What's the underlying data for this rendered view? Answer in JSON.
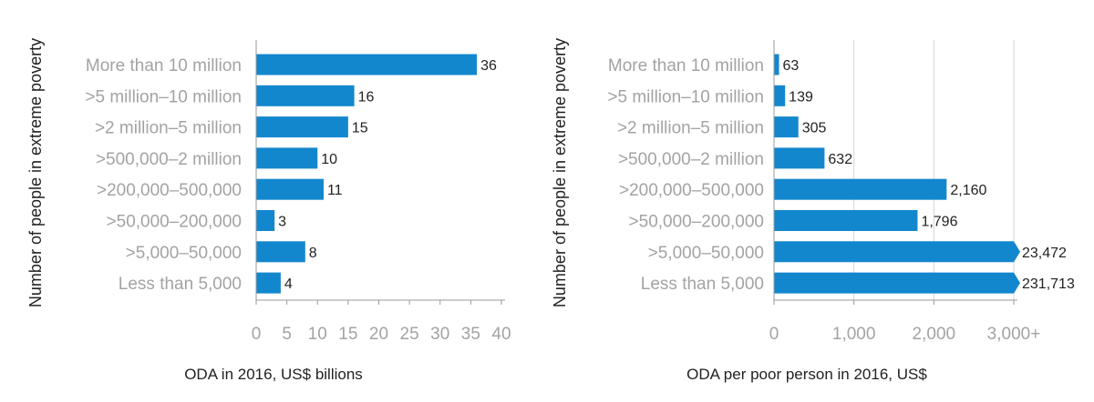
{
  "colors": {
    "bar": "#1387cd",
    "axis": "#999999",
    "grid": "#d4d4d4",
    "text_muted": "#a3a3a3",
    "text_dark": "#222222"
  },
  "chart_data": [
    {
      "type": "bar",
      "orientation": "horizontal",
      "categories": [
        "More than 10 million",
        ">5 million–10 million",
        ">2 million–5 million",
        ">500,000–2 million",
        ">200,000–500,000",
        ">50,000–200,000",
        ">5,000–50,000",
        "Less than 5,000"
      ],
      "values": [
        36,
        16,
        15,
        10,
        11,
        3,
        8,
        4
      ],
      "value_labels": [
        "36",
        "16",
        "15",
        "10",
        "11",
        "3",
        "8",
        "4"
      ],
      "xlabel": "ODA in 2016, US$ billions",
      "ylabel": "Number of people in extreme poverty",
      "xlim": [
        0,
        40
      ],
      "ticks": [
        0,
        5,
        10,
        15,
        20,
        25,
        30,
        35,
        40
      ],
      "tick_labels": [
        "0",
        "5",
        "10",
        "15",
        "20",
        "25",
        "30",
        "35",
        "40"
      ],
      "grid": false
    },
    {
      "type": "bar",
      "orientation": "horizontal",
      "categories": [
        "More than 10 million",
        ">5 million–10 million",
        ">2 million–5 million",
        ">500,000–2 million",
        ">200,000–500,000",
        ">50,000–200,000",
        ">5,000–50,000",
        "Less than 5,000"
      ],
      "values": [
        63,
        139,
        305,
        632,
        2160,
        1796,
        23472,
        231713
      ],
      "value_labels": [
        "63",
        "139",
        "305",
        "632",
        "2,160",
        "1,796",
        "23,472",
        "231,713"
      ],
      "xlabel": "ODA per poor person in 2016, US$",
      "ylabel": "Number of people in extreme poverty",
      "xlim": [
        0,
        3000
      ],
      "axis_cap": 3000,
      "ticks": [
        0,
        1000,
        2000,
        3000
      ],
      "tick_labels": [
        "0",
        "1,000",
        "2,000",
        "3,000+"
      ],
      "grid": true
    }
  ]
}
